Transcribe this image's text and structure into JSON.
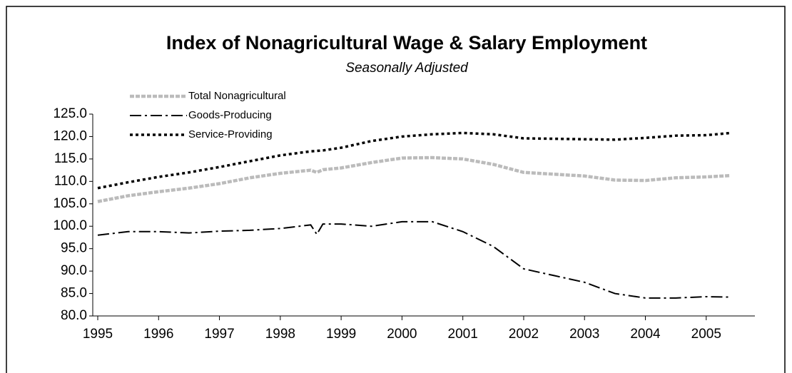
{
  "chart_data": {
    "type": "line",
    "title": "Index of Nonagricultural Wage & Salary Employment",
    "subtitle": "Seasonally Adjusted",
    "x": [
      1995,
      1995.5,
      1996,
      1996.5,
      1997,
      1997.5,
      1998,
      1998.5,
      1998.6,
      1998.7,
      1999,
      1999.5,
      2000,
      2000.5,
      2001,
      2001.5,
      2002,
      2002.5,
      2003,
      2003.5,
      2004,
      2004.5,
      2005,
      2005.4
    ],
    "series": [
      {
        "name": "Total Nonagricultural",
        "color": "#bbbbbb",
        "style": "dashed",
        "values": [
          105.5,
          106.8,
          107.7,
          108.5,
          109.5,
          110.8,
          111.8,
          112.5,
          112.0,
          112.6,
          113.0,
          114.2,
          115.2,
          115.3,
          115.0,
          113.8,
          112.0,
          111.6,
          111.2,
          110.3,
          110.2,
          110.8,
          111.0,
          111.3
        ]
      },
      {
        "name": "Goods-Producing",
        "color": "#000000",
        "style": "dashdot",
        "values": [
          98.0,
          98.8,
          98.8,
          98.5,
          98.9,
          99.1,
          99.5,
          100.3,
          98.2,
          100.5,
          100.5,
          100.0,
          101.0,
          101.0,
          98.8,
          95.5,
          90.5,
          89.0,
          87.5,
          85.0,
          84.0,
          84.0,
          84.3,
          84.2
        ]
      },
      {
        "name": "Service-Providing",
        "color": "#000000",
        "style": "dotted",
        "values": [
          108.5,
          109.8,
          111.0,
          112.0,
          113.2,
          114.5,
          115.8,
          116.7,
          116.8,
          116.9,
          117.5,
          119.0,
          120.0,
          120.5,
          120.8,
          120.5,
          119.6,
          119.5,
          119.4,
          119.3,
          119.7,
          120.2,
          120.3,
          120.8
        ]
      }
    ],
    "xlim": [
      1995,
      2005.8
    ],
    "xticks": [
      1995,
      1996,
      1997,
      1998,
      1999,
      2000,
      2001,
      2002,
      2003,
      2004,
      2005
    ],
    "ylim": [
      80,
      125
    ],
    "yticks": [
      {
        "value": 80,
        "label": "80.0"
      },
      {
        "value": 85,
        "label": "85.0"
      },
      {
        "value": 90,
        "label": "90.0"
      },
      {
        "value": 95,
        "label": "95.0"
      },
      {
        "value": 100,
        "label": "100.0"
      },
      {
        "value": 105,
        "label": "105.0"
      },
      {
        "value": 110,
        "label": "110.0"
      },
      {
        "value": 115,
        "label": "115.0"
      },
      {
        "value": 120,
        "label": "120.0"
      },
      {
        "value": 125,
        "label": "125.0"
      }
    ],
    "legend": "top-left"
  }
}
